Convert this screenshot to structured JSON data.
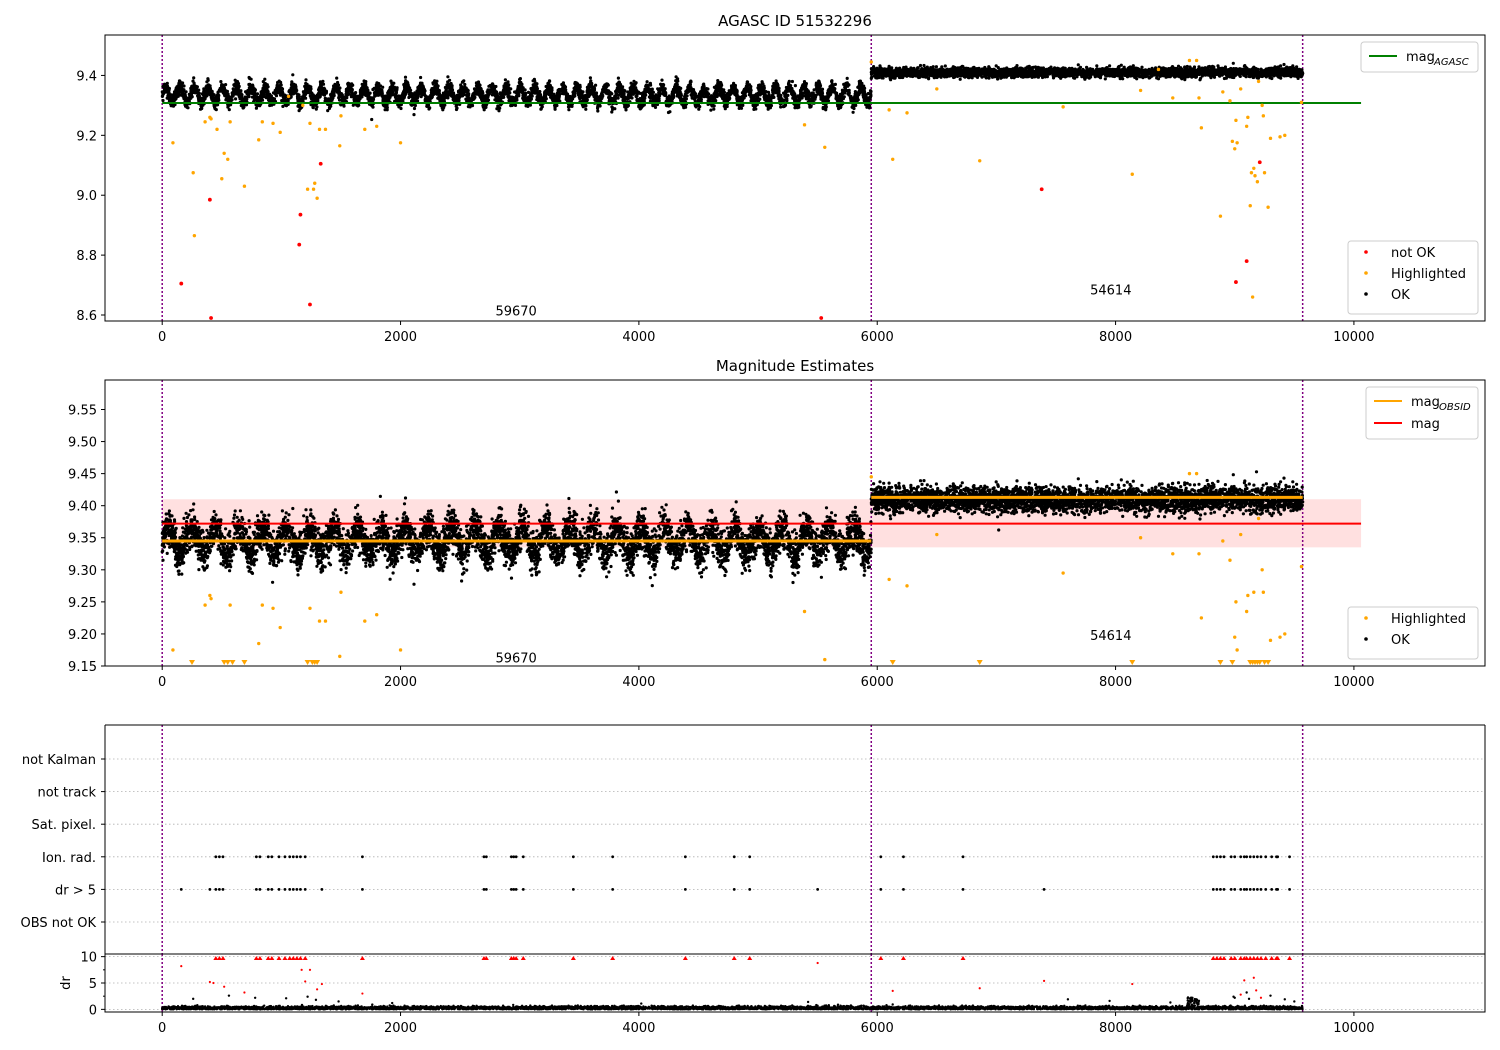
{
  "figure": {
    "background": "#ffffff"
  },
  "colors": {
    "ok": "#000000",
    "highlighted": "#ffa500",
    "not_ok": "#ff0000",
    "agasc_line": "#008000",
    "mag_line": "#ff0000",
    "mag_band": "#ffcccc",
    "obsid_line": "#ffa500",
    "divider": "#800080",
    "grid": "#b0b0b0"
  },
  "chart_data": [
    {
      "type": "scatter",
      "title": "AGASC ID 51532296",
      "xlabel": "",
      "ylabel": "",
      "xlim": [
        -480,
        11100
      ],
      "ylim": [
        8.58,
        9.535
      ],
      "xticks": [
        0,
        2000,
        4000,
        6000,
        8000,
        10000
      ],
      "yticks": [
        8.6,
        8.8,
        9.0,
        9.2,
        9.4
      ],
      "ytick_labels": [
        "8.6",
        "8.8",
        "9.0",
        "9.2",
        "9.4"
      ],
      "grid": false,
      "legend_position": "upper-right",
      "legend_lines": [
        {
          "label_main": "mag",
          "label_sub": "AGASC",
          "color": "#008000"
        }
      ],
      "legend_points": [
        {
          "label": "not OK",
          "color": "#ff0000"
        },
        {
          "label": "Highlighted",
          "color": "#ffa500"
        },
        {
          "label": "OK",
          "color": "#000000"
        }
      ],
      "legend_points_position": "lower-right",
      "hlines": [
        {
          "y": 9.308,
          "x_range": [
            0,
            10060
          ],
          "color": "#008000"
        }
      ],
      "vlines": [
        0,
        5950,
        9570
      ],
      "segments": [
        {
          "x_range": [
            0,
            5950
          ],
          "base": 9.335,
          "amp": 0.025,
          "noise": 0.012,
          "cycles": 50,
          "n": 5200
        },
        {
          "x_range": [
            5950,
            9570
          ],
          "base": 9.41,
          "amp": 0.004,
          "noise": 0.008,
          "cycles": 0,
          "n": 3300
        }
      ],
      "obsid_labels": [
        {
          "text": "59670",
          "x": 2970,
          "y": 8.615
        },
        {
          "text": "54614",
          "x": 7960,
          "y": 8.685
        }
      ],
      "highlighted_points": [
        [
          90,
          9.175
        ],
        [
          260,
          9.075
        ],
        [
          270,
          8.865
        ],
        [
          360,
          9.245
        ],
        [
          400,
          9.26
        ],
        [
          410,
          9.255
        ],
        [
          460,
          9.22
        ],
        [
          500,
          9.055
        ],
        [
          520,
          9.14
        ],
        [
          550,
          9.12
        ],
        [
          570,
          9.245
        ],
        [
          690,
          9.03
        ],
        [
          810,
          9.185
        ],
        [
          840,
          9.245
        ],
        [
          930,
          9.24
        ],
        [
          990,
          9.21
        ],
        [
          1060,
          9.33
        ],
        [
          1180,
          9.3
        ],
        [
          1220,
          9.02
        ],
        [
          1240,
          9.24
        ],
        [
          1270,
          9.02
        ],
        [
          1280,
          9.04
        ],
        [
          1300,
          8.99
        ],
        [
          1320,
          9.22
        ],
        [
          1370,
          9.22
        ],
        [
          1490,
          9.165
        ],
        [
          1500,
          9.265
        ],
        [
          1700,
          9.22
        ],
        [
          1800,
          9.23
        ],
        [
          2000,
          9.175
        ],
        [
          5390,
          9.235
        ],
        [
          5560,
          9.16
        ],
        [
          5950,
          9.445
        ],
        [
          6100,
          9.285
        ],
        [
          6130,
          9.12
        ],
        [
          6250,
          9.275
        ],
        [
          6500,
          9.355
        ],
        [
          6860,
          9.115
        ],
        [
          7560,
          9.295
        ],
        [
          8140,
          9.07
        ],
        [
          8210,
          9.35
        ],
        [
          8360,
          9.42
        ],
        [
          8480,
          9.325
        ],
        [
          8620,
          9.45
        ],
        [
          8680,
          9.45
        ],
        [
          8700,
          9.325
        ],
        [
          8720,
          9.225
        ],
        [
          8880,
          8.93
        ],
        [
          8900,
          9.345
        ],
        [
          8960,
          9.315
        ],
        [
          8980,
          9.18
        ],
        [
          9000,
          9.155
        ],
        [
          9010,
          9.25
        ],
        [
          9020,
          9.175
        ],
        [
          9050,
          9.355
        ],
        [
          9100,
          9.23
        ],
        [
          9110,
          9.26
        ],
        [
          9130,
          8.965
        ],
        [
          9140,
          9.075
        ],
        [
          9150,
          8.66
        ],
        [
          9160,
          9.09
        ],
        [
          9170,
          9.065
        ],
        [
          9190,
          9.045
        ],
        [
          9200,
          9.38
        ],
        [
          9230,
          9.3
        ],
        [
          9240,
          9.265
        ],
        [
          9250,
          9.075
        ],
        [
          9280,
          8.96
        ],
        [
          9300,
          9.19
        ],
        [
          9380,
          9.195
        ],
        [
          9420,
          9.2
        ],
        [
          9560,
          9.31
        ]
      ],
      "not_ok_points": [
        [
          160,
          8.705
        ],
        [
          400,
          8.985
        ],
        [
          410,
          8.59
        ],
        [
          1150,
          8.835
        ],
        [
          1160,
          8.935
        ],
        [
          1240,
          8.635
        ],
        [
          1330,
          9.105
        ],
        [
          5530,
          8.59
        ],
        [
          7380,
          9.02
        ],
        [
          9010,
          8.71
        ],
        [
          9100,
          8.78
        ],
        [
          9210,
          9.11
        ]
      ]
    },
    {
      "type": "scatter",
      "title": "Magnitude Estimates",
      "xlabel": "",
      "ylabel": "",
      "xlim": [
        -480,
        11100
      ],
      "ylim": [
        9.15,
        9.596
      ],
      "xticks": [
        0,
        2000,
        4000,
        6000,
        8000,
        10000
      ],
      "yticks": [
        9.15,
        9.2,
        9.25,
        9.3,
        9.35,
        9.4,
        9.45,
        9.5,
        9.55
      ],
      "ytick_labels": [
        "9.15",
        "9.20",
        "9.25",
        "9.30",
        "9.35",
        "9.40",
        "9.45",
        "9.50",
        "9.55"
      ],
      "grid": false,
      "legend_position": "upper-right",
      "legend_lines": [
        {
          "label_main": "mag",
          "label_sub": "OBSID",
          "color": "#ffa500"
        },
        {
          "label_main": "mag",
          "label_sub": "",
          "color": "#ff0000"
        }
      ],
      "legend_points": [
        {
          "label": "Highlighted",
          "color": "#ffa500"
        },
        {
          "label": "OK",
          "color": "#000000"
        }
      ],
      "legend_points_position": "lower-right",
      "mag": 9.372,
      "mag_band": [
        9.335,
        9.41
      ],
      "mag_x_range": [
        0,
        10060
      ],
      "obsid_means": [
        {
          "x_range": [
            0,
            5950
          ],
          "y": 9.345
        },
        {
          "x_range": [
            5950,
            9570
          ],
          "y": 9.413
        }
      ],
      "vlines": [
        0,
        5950,
        9570
      ],
      "segments": [
        {
          "x_range": [
            0,
            5950
          ],
          "base": 9.345,
          "amp": 0.02,
          "noise": 0.015,
          "cycles": 30,
          "n": 6000
        },
        {
          "x_range": [
            5950,
            9570
          ],
          "base": 9.41,
          "amp": 0.004,
          "noise": 0.01,
          "cycles": 0,
          "n": 3600
        }
      ],
      "obsid_labels": [
        {
          "text": "59670",
          "x": 2970,
          "y": 9.163
        },
        {
          "text": "54614",
          "x": 7960,
          "y": 9.198
        }
      ],
      "highlighted_points": [
        [
          90,
          9.175
        ],
        [
          360,
          9.245
        ],
        [
          400,
          9.26
        ],
        [
          410,
          9.255
        ],
        [
          570,
          9.245
        ],
        [
          810,
          9.185
        ],
        [
          840,
          9.245
        ],
        [
          930,
          9.24
        ],
        [
          990,
          9.21
        ],
        [
          1240,
          9.24
        ],
        [
          1320,
          9.22
        ],
        [
          1370,
          9.22
        ],
        [
          1490,
          9.165
        ],
        [
          1500,
          9.265
        ],
        [
          1700,
          9.22
        ],
        [
          1800,
          9.23
        ],
        [
          2000,
          9.175
        ],
        [
          5390,
          9.235
        ],
        [
          5560,
          9.16
        ],
        [
          5950,
          9.445
        ],
        [
          6100,
          9.285
        ],
        [
          6250,
          9.275
        ],
        [
          6500,
          9.355
        ],
        [
          7560,
          9.295
        ],
        [
          8210,
          9.35
        ],
        [
          8480,
          9.325
        ],
        [
          8620,
          9.45
        ],
        [
          8680,
          9.45
        ],
        [
          8700,
          9.325
        ],
        [
          8720,
          9.225
        ],
        [
          8900,
          9.345
        ],
        [
          8960,
          9.315
        ],
        [
          9000,
          9.195
        ],
        [
          9010,
          9.25
        ],
        [
          9020,
          9.175
        ],
        [
          9050,
          9.355
        ],
        [
          9100,
          9.235
        ],
        [
          9110,
          9.26
        ],
        [
          9160,
          9.265
        ],
        [
          9200,
          9.38
        ],
        [
          9230,
          9.3
        ],
        [
          9240,
          9.265
        ],
        [
          9300,
          9.19
        ],
        [
          9380,
          9.195
        ],
        [
          9420,
          9.2
        ],
        [
          9560,
          9.305
        ]
      ],
      "clipped_highlighted_x": [
        250,
        520,
        550,
        590,
        690,
        1220,
        1260,
        1280,
        1300,
        6130,
        6860,
        8140,
        8880,
        8980,
        9130,
        9150,
        9170,
        9190,
        9210,
        9250,
        9280
      ]
    },
    {
      "type": "scatter",
      "title": "",
      "xlabel": "",
      "ylabel": "",
      "xlim": [
        -480,
        11100
      ],
      "xticks": [
        0,
        2000,
        4000,
        6000,
        8000,
        10000
      ],
      "grid": true,
      "category_labels": [
        "not Kalman",
        "not track",
        "Sat. pixel.",
        "Ion. rad.",
        "dr > 5",
        "OBS not OK"
      ],
      "vlines": [
        0,
        5950,
        9570
      ],
      "flags": {
        "Ion. rad.": [
          450,
          480,
          510,
          790,
          820,
          890,
          920,
          980,
          1030,
          1070,
          1100,
          1130,
          1160,
          1200,
          1680,
          2700,
          2720,
          2930,
          2950,
          2970,
          3030,
          3450,
          3780,
          4390,
          4800,
          4930,
          6030,
          6220,
          6720,
          8820,
          8850,
          8880,
          8910,
          8970,
          9000,
          9050,
          9080,
          9100,
          9130,
          9160,
          9190,
          9220,
          9260,
          9310,
          9350,
          9360,
          9460
        ],
        "dr > 5": [
          160,
          400,
          450,
          480,
          510,
          790,
          820,
          890,
          920,
          980,
          1030,
          1070,
          1100,
          1130,
          1160,
          1200,
          1340,
          1680,
          2700,
          2720,
          2930,
          2950,
          2970,
          3030,
          3450,
          3780,
          4390,
          4800,
          4930,
          5500,
          6030,
          6220,
          6720,
          7400,
          8820,
          8850,
          8880,
          8910,
          8970,
          9000,
          9050,
          9080,
          9100,
          9130,
          9160,
          9190,
          9220,
          9260,
          9310,
          9350,
          9360,
          9460
        ]
      }
    },
    {
      "type": "scatter",
      "title": "",
      "xlabel": "",
      "ylabel": "dr",
      "xlim": [
        -480,
        11100
      ],
      "ylim": [
        -0.5,
        10.5
      ],
      "xticks": [
        0,
        2000,
        4000,
        6000,
        8000,
        10000
      ],
      "yticks": [
        0,
        5,
        10
      ],
      "ytick_labels": [
        "0",
        "5",
        "10"
      ],
      "grid": true,
      "vlines": [
        0,
        5950,
        9570
      ],
      "n_points": 6000,
      "red_clipped_x": [
        450,
        480,
        510,
        790,
        820,
        890,
        920,
        980,
        1030,
        1070,
        1100,
        1130,
        1160,
        1200,
        1680,
        2700,
        2720,
        2930,
        2950,
        2970,
        3030,
        3450,
        3780,
        4390,
        4800,
        4930,
        6030,
        6220,
        6720,
        8820,
        8850,
        8880,
        8910,
        8970,
        9000,
        9050,
        9080,
        9100,
        9130,
        9160,
        9190,
        9220,
        9260,
        9310,
        9350,
        9360,
        9460
      ],
      "red_points": [
        [
          160,
          8.2
        ],
        [
          400,
          5.2
        ],
        [
          430,
          5.0
        ],
        [
          520,
          4.3
        ],
        [
          690,
          3.2
        ],
        [
          1170,
          7.5
        ],
        [
          1240,
          7.5
        ],
        [
          1200,
          5.3
        ],
        [
          1300,
          3.8
        ],
        [
          1340,
          4.8
        ],
        [
          1680,
          3.0
        ],
        [
          5500,
          8.8
        ],
        [
          6130,
          3.5
        ],
        [
          6860,
          4.0
        ],
        [
          7400,
          5.4
        ],
        [
          8140,
          4.8
        ],
        [
          9080,
          5.5
        ],
        [
          9160,
          6.0
        ],
        [
          9180,
          3.6
        ],
        [
          9050,
          2.8
        ],
        [
          9220,
          2.2
        ]
      ],
      "black_points": [
        [
          260,
          2.0
        ],
        [
          560,
          2.6
        ],
        [
          780,
          2.2
        ],
        [
          1040,
          2.1
        ],
        [
          1220,
          2.4
        ],
        [
          1290,
          1.8
        ],
        [
          1480,
          1.5
        ],
        [
          1930,
          1.2
        ],
        [
          4020,
          1.1
        ],
        [
          5420,
          1.4
        ],
        [
          7600,
          1.9
        ],
        [
          7950,
          1.6
        ],
        [
          8460,
          1.3
        ],
        [
          8990,
          2.4
        ],
        [
          9000,
          2.2
        ],
        [
          9100,
          3.2
        ],
        [
          9120,
          2.0
        ],
        [
          9300,
          2.6
        ],
        [
          9420,
          1.9
        ],
        [
          9500,
          1.5
        ]
      ],
      "cluster": {
        "x_range": [
          8600,
          8700
        ],
        "y_range": [
          0.2,
          2.3
        ]
      }
    }
  ]
}
